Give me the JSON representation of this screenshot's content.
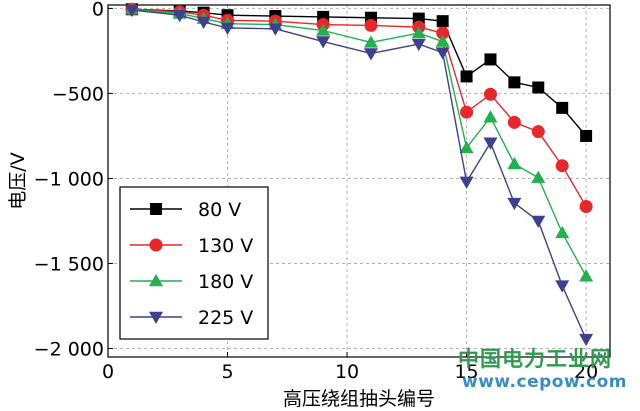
{
  "chart_data": {
    "type": "line",
    "xlabel": "高压绕组抽头编号",
    "ylabel": "电压/V",
    "xlim": [
      0,
      21
    ],
    "ylim": [
      -2050,
      20
    ],
    "xticks": [
      0,
      5,
      10,
      15,
      20
    ],
    "yticks": [
      0,
      -500,
      -1000,
      -1500,
      -2000
    ],
    "ytick_labels": [
      "0",
      "−500",
      "−1 000",
      "−1 500",
      "−2 000"
    ],
    "grid": true,
    "legend_position": "lower-left",
    "x": [
      1,
      3,
      4,
      5,
      7,
      9,
      11,
      13,
      14,
      15,
      16,
      17,
      18,
      19,
      20
    ],
    "series": [
      {
        "name": "80 V",
        "color": "#000000",
        "marker": "square",
        "values": [
          -5,
          -15,
          -25,
          -40,
          -45,
          -50,
          -55,
          -60,
          -75,
          -400,
          -300,
          -435,
          -465,
          -585,
          -750
        ]
      },
      {
        "name": "130 V",
        "color": "#e8272a",
        "marker": "circle",
        "values": [
          -5,
          -20,
          -40,
          -70,
          -75,
          -95,
          -100,
          -110,
          -145,
          -610,
          -505,
          -670,
          -725,
          -925,
          -1165
        ]
      },
      {
        "name": "180 V",
        "color": "#22b14c",
        "marker": "triangle-up",
        "values": [
          -5,
          -30,
          -60,
          -90,
          -95,
          -130,
          -200,
          -145,
          -195,
          -820,
          -640,
          -915,
          -995,
          -1320,
          -1575
        ]
      },
      {
        "name": "225 V",
        "color": "#3f3f8f",
        "marker": "triangle-down",
        "values": [
          -10,
          -40,
          -80,
          -115,
          -120,
          -195,
          -265,
          -210,
          -260,
          -1020,
          -790,
          -1145,
          -1250,
          -1630,
          -1945
        ]
      }
    ]
  },
  "watermark": {
    "line1": "中国电力工业网",
    "line2": "www.cepow.com"
  }
}
